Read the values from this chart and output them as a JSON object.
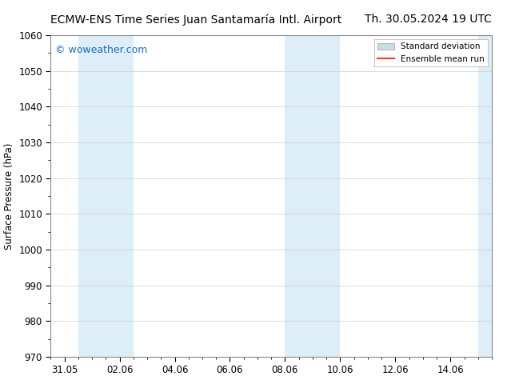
{
  "title_left": "ECMW-ENS Time Series Juan Santamaría Intl. Airport",
  "title_right": "Th. 30.05.2024 19 UTC",
  "ylabel": "Surface Pressure (hPa)",
  "watermark": "© woweather.com",
  "watermark_color": "#1a6cc7",
  "background_color": "#ffffff",
  "plot_bg_color": "#ffffff",
  "ylim": [
    970,
    1060
  ],
  "yticks": [
    970,
    980,
    990,
    1000,
    1010,
    1020,
    1030,
    1040,
    1050,
    1060
  ],
  "xtick_labels": [
    "31.05",
    "02.06",
    "04.06",
    "06.06",
    "08.06",
    "10.06",
    "12.06",
    "14.06"
  ],
  "xtick_positions": [
    0,
    2,
    4,
    6,
    8,
    10,
    12,
    14
  ],
  "xlim": [
    -0.5,
    15.5
  ],
  "shade_bands": [
    {
      "xmin": 0.5,
      "xmax": 2.5
    },
    {
      "xmin": 8.0,
      "xmax": 10.0
    },
    {
      "xmin": 15.0,
      "xmax": 15.5
    }
  ],
  "shade_color": "#ddeef8",
  "legend_std_color": "#c8dce8",
  "legend_mean_color": "#ff3333",
  "title_fontsize": 10,
  "axis_fontsize": 8.5,
  "watermark_fontsize": 9
}
